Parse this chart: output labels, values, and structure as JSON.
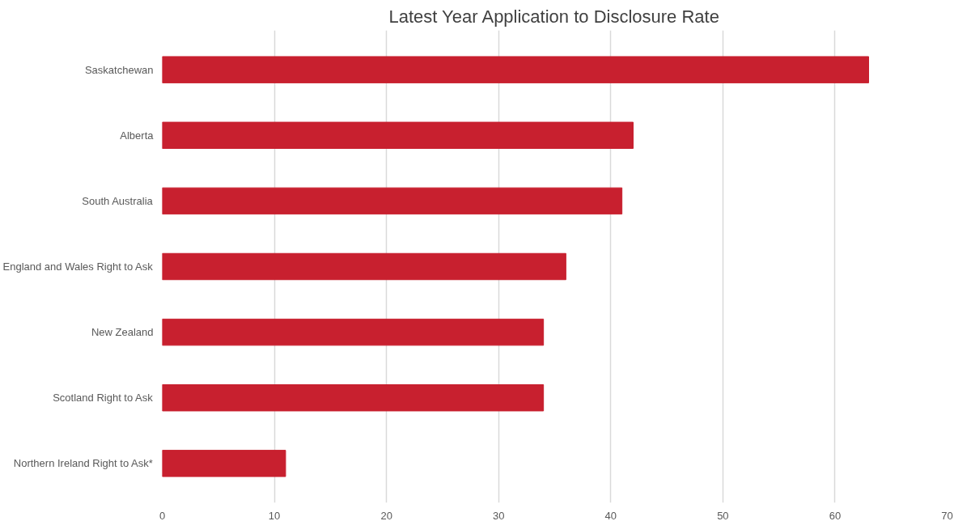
{
  "chart_data": {
    "type": "bar",
    "orientation": "horizontal",
    "title": "Latest Year Application to Disclosure Rate",
    "categories": [
      "Saskatchewan",
      "Alberta",
      "South Australia",
      "England and Wales Right to Ask",
      "New Zealand",
      "Scotland Right to Ask",
      "Northern Ireland Right to Ask*"
    ],
    "values": [
      63,
      42,
      41,
      36,
      34,
      34,
      11
    ],
    "color": "#c8202f",
    "xlim": [
      0,
      70
    ],
    "xticks": [
      0,
      10,
      20,
      30,
      40,
      50,
      60,
      70
    ],
    "grid": "x"
  }
}
